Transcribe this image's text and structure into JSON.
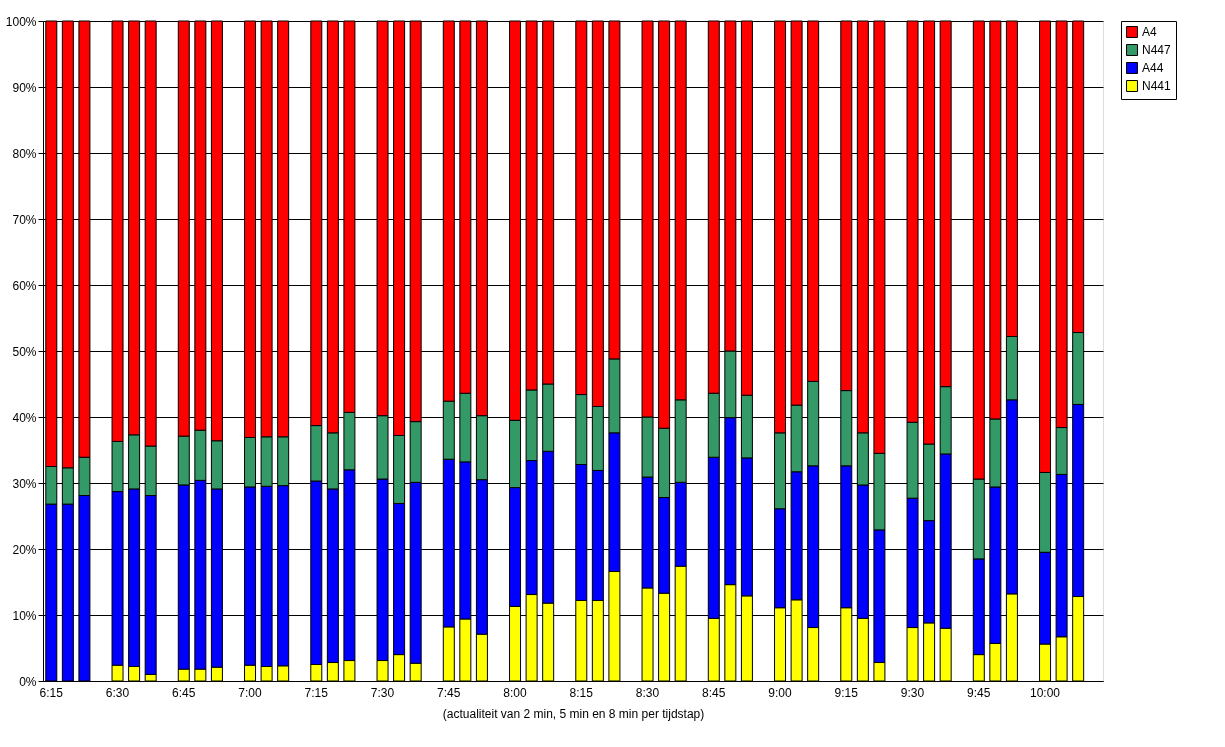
{
  "chart_data": {
    "type": "bar",
    "stacked": true,
    "xlabel": "(actualiteit van 2 min, 5 min en 8 min per tijdstap)",
    "categories": [
      "6:15",
      null,
      null,
      null,
      "6:30",
      null,
      null,
      null,
      "6:45",
      null,
      null,
      null,
      "7:00",
      null,
      null,
      null,
      "7:15",
      null,
      null,
      null,
      "7:30",
      null,
      null,
      null,
      "7:45",
      null,
      null,
      null,
      "8:00",
      null,
      null,
      null,
      "8:15",
      null,
      null,
      null,
      "8:30",
      null,
      null,
      null,
      "8:45",
      null,
      null,
      null,
      "9:00",
      null,
      null,
      null,
      "9:15",
      null,
      null,
      null,
      "9:30",
      null,
      null,
      null,
      "9:45",
      null,
      null,
      null,
      "10:00",
      null,
      null,
      null
    ],
    "series": [
      {
        "name": "N441",
        "color": "#ffff00",
        "values": [
          0,
          0,
          0,
          null,
          2.4,
          2.2,
          1.0,
          null,
          1.8,
          1.8,
          2.1,
          null,
          2.4,
          2.2,
          2.3,
          null,
          2.5,
          2.8,
          3.1,
          null,
          3.1,
          4.0,
          2.7,
          null,
          8.2,
          9.4,
          7.1,
          null,
          11.3,
          13.1,
          11.8,
          null,
          12.2,
          12.2,
          16.6,
          null,
          14.1,
          13.3,
          17.4,
          null,
          9.5,
          14.6,
          12.9,
          null,
          11.1,
          12.3,
          8.1,
          null,
          11.1,
          9.5,
          2.8,
          null,
          8.1,
          8.8,
          8.0,
          null,
          4.0,
          5.7,
          13.2,
          null,
          5.6,
          6.7,
          12.8,
          null
        ]
      },
      {
        "name": "A44",
        "color": "#0000ff",
        "values": [
          26.8,
          26.8,
          28.1,
          null,
          26.3,
          26.9,
          27.1,
          null,
          27.9,
          28.6,
          27.0,
          null,
          27.0,
          27.3,
          27.3,
          null,
          27.8,
          26.3,
          28.9,
          null,
          27.5,
          22.9,
          27.4,
          null,
          25.4,
          23.8,
          23.4,
          null,
          18.0,
          20.3,
          23.0,
          null,
          20.6,
          19.7,
          21.0,
          null,
          16.8,
          14.5,
          12.7,
          null,
          24.4,
          25.3,
          20.9,
          null,
          15.0,
          19.4,
          24.5,
          null,
          21.5,
          20.2,
          20.1,
          null,
          19.6,
          15.5,
          26.4,
          null,
          14.5,
          23.7,
          29.4,
          null,
          13.9,
          24.6,
          29.1,
          null
        ]
      },
      {
        "name": "N447",
        "color": "#339966",
        "values": [
          5.7,
          5.5,
          5.8,
          null,
          7.6,
          8.2,
          7.5,
          null,
          7.4,
          7.6,
          7.3,
          null,
          7.5,
          7.5,
          7.4,
          null,
          8.4,
          8.5,
          8.7,
          null,
          9.6,
          10.3,
          9.2,
          null,
          8.8,
          10.4,
          9.7,
          null,
          10.2,
          10.7,
          10.2,
          null,
          10.6,
          9.7,
          11.2,
          null,
          9.1,
          10.5,
          12.5,
          null,
          9.7,
          10.1,
          9.5,
          null,
          11.5,
          10.1,
          12.8,
          null,
          11.4,
          7.9,
          11.6,
          null,
          11.5,
          11.6,
          10.2,
          null,
          12.1,
          10.3,
          9.6,
          null,
          12.1,
          7.1,
          10.9,
          null
        ]
      },
      {
        "name": "A4",
        "color": "#ff0000",
        "values": [
          67.5,
          67.7,
          66.1,
          null,
          63.7,
          62.7,
          64.4,
          null,
          62.9,
          62.0,
          63.6,
          null,
          63.1,
          63.0,
          63.0,
          null,
          61.3,
          62.4,
          59.3,
          null,
          59.8,
          62.8,
          60.7,
          null,
          57.6,
          56.4,
          59.8,
          null,
          60.5,
          55.9,
          55.0,
          null,
          56.6,
          58.4,
          51.2,
          null,
          60.0,
          61.7,
          57.4,
          null,
          56.4,
          50.0,
          56.7,
          null,
          62.4,
          58.2,
          54.6,
          null,
          56.0,
          62.4,
          65.5,
          null,
          60.8,
          64.1,
          55.4,
          null,
          69.4,
          60.3,
          47.8,
          null,
          68.4,
          61.6,
          47.2,
          null
        ]
      }
    ],
    "ylim": [
      0,
      100
    ],
    "yticks": [
      {
        "value": 0,
        "label": "0%"
      },
      {
        "value": 10,
        "label": "10%"
      },
      {
        "value": 20,
        "label": "20%"
      },
      {
        "value": 30,
        "label": "30%"
      },
      {
        "value": 40,
        "label": "40%"
      },
      {
        "value": 50,
        "label": "50%"
      },
      {
        "value": 60,
        "label": "60%"
      },
      {
        "value": 70,
        "label": "70%"
      },
      {
        "value": 80,
        "label": "80%"
      },
      {
        "value": 90,
        "label": "90%"
      },
      {
        "value": 100,
        "label": "100%"
      }
    ],
    "grid": "y",
    "legend": "right"
  }
}
